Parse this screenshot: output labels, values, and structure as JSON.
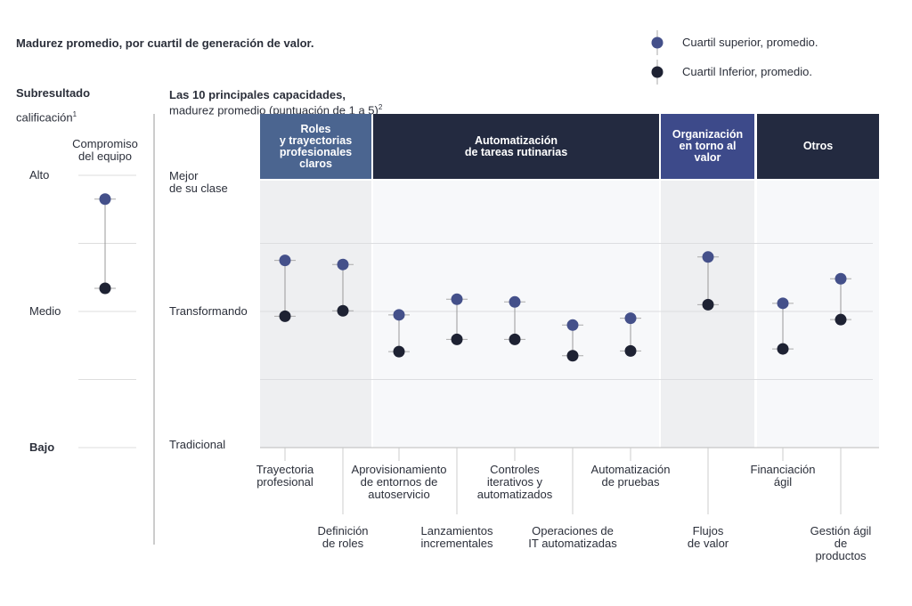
{
  "header": {
    "title": "Madurez promedio, por cuartil de generación de valor."
  },
  "chart_data": [
    {
      "type": "dumbbell",
      "title": "Subresultado",
      "subtitle": "calificación",
      "subtitle_note": "1",
      "categories": [
        "Compromiso\ndel equipo"
      ],
      "series": [
        {
          "color": "#44508a",
          "values": [
            4.65
          ]
        },
        {
          "color": "#1e2233",
          "values": [
            3.34
          ]
        }
      ],
      "ylim": [
        1,
        5
      ],
      "yticks": [
        {
          "value": 1,
          "label": "Bajo"
        },
        {
          "value": 3,
          "label": "Medio"
        },
        {
          "value": 5,
          "label": "Alto"
        }
      ],
      "grid": [
        1,
        2,
        3,
        4,
        5
      ]
    },
    {
      "type": "dumbbell",
      "title": "Las 10 principales capacidades,",
      "subtitle": "madurez promedio (puntuación de 1 a 5)",
      "subtitle_note": "2",
      "groups": [
        {
          "label": "Roles\ny trayectorias\nprofesionales\nclaros",
          "color": "#4b6590",
          "shade": "#eeeff1"
        },
        {
          "label": "Automatización\nde tareas rutinarias",
          "color": "#232a40",
          "shade": "#f7f8fa"
        },
        {
          "label": "Organización\nen torno al\nvalor",
          "color": "#3d4a8a",
          "shade": "#eeeff1"
        },
        {
          "label": "Otros",
          "color": "#232a40",
          "shade": "#f7f8fa"
        }
      ],
      "categories": [
        "Trayectoria\nprofesional",
        "Definición\nde roles",
        "Aprovisionamiento\nde entornos de\nautoservicio",
        "Lanzamientos\nincrementales",
        "Controles\niterativos y\nautomatizados",
        "Operaciones de\nIT automatizadas",
        "Automatización\nde pruebas",
        "Flujos\nde valor",
        "Financiación\nágil",
        "Gestión ágil de\nproductos"
      ],
      "series": [
        {
          "name": "Cuartil superior, promedio.",
          "color": "#44508a",
          "values": [
            3.75,
            3.69,
            2.95,
            3.18,
            3.14,
            2.8,
            2.9,
            3.8,
            3.12,
            3.48
          ]
        },
        {
          "name": "Cuartil Inferior, promedio.",
          "color": "#1e2233",
          "values": [
            2.93,
            3.01,
            2.41,
            2.59,
            2.59,
            2.35,
            2.42,
            3.1,
            2.45,
            2.88
          ]
        }
      ],
      "ylim": [
        1,
        5
      ],
      "yticks": [
        {
          "value": 1,
          "label": "Tradicional"
        },
        {
          "value": 3,
          "label": "Transformando"
        },
        {
          "value": 5,
          "label": "Mejor\nde su clase"
        }
      ],
      "grid": [
        2,
        3,
        4
      ]
    }
  ]
}
